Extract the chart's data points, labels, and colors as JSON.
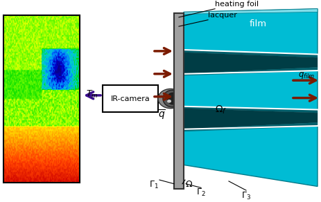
{
  "fig_width": 4.64,
  "fig_height": 2.92,
  "dpi": 100,
  "bg_color": "#ffffff",
  "film_color": "#00BCD4",
  "film_edge_color": "#007A8A",
  "film_dark_color": "#005F6B",
  "wall_color": "#A0A0A0",
  "wall_edge_color": "#404040",
  "pink_color": "#F8B4BC",
  "arrow_color": "#7B1B00",
  "label_heating_foil": "heating foil",
  "label_lacquer": "lacquer",
  "label_film": "film",
  "label_qbar": "$\\overline{q}$",
  "label_qfilm": "$q_{film}$",
  "label_omega_f": "$\\Omega_f$",
  "label_omega": "$\\Omega$",
  "label_gamma1": "$\\Gamma_1$",
  "label_gamma2": "$\\Gamma_2$",
  "label_gamma3": "$\\Gamma_3$",
  "label_tm": "$T_m$",
  "label_camera": "IR-camera",
  "purple_color": "#3B0E8C",
  "black": "#000000",
  "white": "#ffffff"
}
